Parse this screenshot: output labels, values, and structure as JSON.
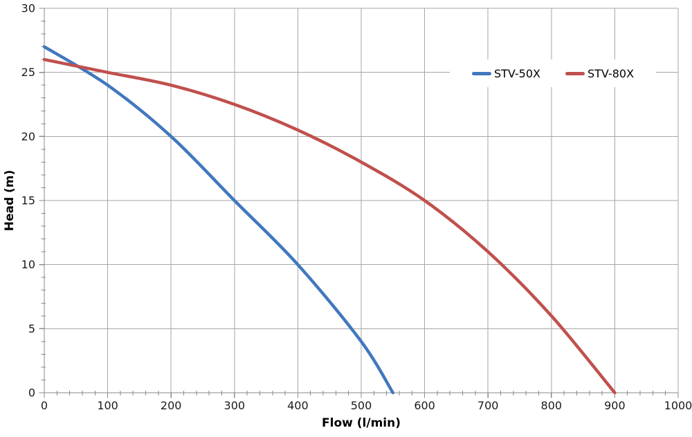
{
  "chart_data": {
    "type": "line",
    "title": "",
    "xlabel": "Flow (l/min)",
    "ylabel": "Head (m)",
    "xlim": [
      0,
      1000
    ],
    "ylim": [
      0,
      30
    ],
    "x_ticks": [
      0,
      100,
      200,
      300,
      400,
      500,
      600,
      700,
      800,
      900,
      1000
    ],
    "y_ticks": [
      0,
      5,
      10,
      15,
      20,
      25,
      30
    ],
    "x_minor_step": 20,
    "y_minor_step": 1,
    "grid": "major-on",
    "legend_position": "inside-top-right",
    "series": [
      {
        "name": "STV-50X",
        "color": "#4178BE",
        "points": [
          [
            0,
            27
          ],
          [
            100,
            24
          ],
          [
            200,
            20
          ],
          [
            300,
            15
          ],
          [
            400,
            10
          ],
          [
            500,
            4
          ],
          [
            550,
            0
          ]
        ]
      },
      {
        "name": "STV-80X",
        "color": "#C0504D",
        "points": [
          [
            0,
            26
          ],
          [
            100,
            25
          ],
          [
            200,
            24
          ],
          [
            300,
            22.5
          ],
          [
            400,
            20.5
          ],
          [
            500,
            18
          ],
          [
            600,
            15
          ],
          [
            700,
            11
          ],
          [
            800,
            6
          ],
          [
            900,
            0
          ]
        ]
      }
    ],
    "styles": {
      "background": "#FFFFFF",
      "gridline_color": "#A6A6A6",
      "axis_color": "#8A8A8A",
      "text_color": "#1A1A1A",
      "line_width": 4.5
    }
  }
}
